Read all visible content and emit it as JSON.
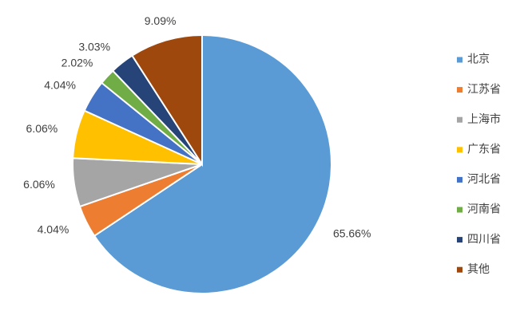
{
  "chart_data": {
    "type": "pie",
    "categories": [
      "北京",
      "江苏省",
      "上海市",
      "广东省",
      "河北省",
      "河南省",
      "四川省",
      "其他"
    ],
    "values": [
      65.66,
      4.04,
      6.06,
      6.06,
      4.04,
      2.02,
      3.03,
      9.09
    ],
    "value_labels": [
      "65.66%",
      "4.04%",
      "6.06%",
      "6.06%",
      "4.04%",
      "2.02%",
      "3.03%",
      "9.09%"
    ],
    "colors": [
      "#5b9bd5",
      "#ed7d31",
      "#a5a5a5",
      "#ffc000",
      "#4472c4",
      "#70ad47",
      "#264478",
      "#9e480e"
    ],
    "legend": "right"
  }
}
